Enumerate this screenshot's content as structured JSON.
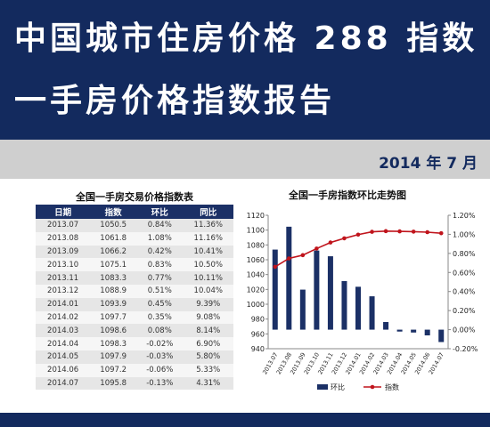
{
  "header": {
    "title_line1": "中国城市住房价格 288 指数",
    "title_line2": "一手房价格指数报告"
  },
  "date_label": "2014 年 7 月",
  "table": {
    "title": "全国一手房交易价格指数表",
    "columns": [
      "日期",
      "指数",
      "环比",
      "同比"
    ],
    "rows": [
      [
        "2013.07",
        "1050.5",
        "0.84%",
        "11.36%"
      ],
      [
        "2013.08",
        "1061.8",
        "1.08%",
        "11.16%"
      ],
      [
        "2013.09",
        "1066.2",
        "0.42%",
        "10.41%"
      ],
      [
        "2013.10",
        "1075.1",
        "0.83%",
        "10.50%"
      ],
      [
        "2013.11",
        "1083.3",
        "0.77%",
        "10.11%"
      ],
      [
        "2013.12",
        "1088.9",
        "0.51%",
        "10.04%"
      ],
      [
        "2014.01",
        "1093.9",
        "0.45%",
        "9.39%"
      ],
      [
        "2014.02",
        "1097.7",
        "0.35%",
        "9.08%"
      ],
      [
        "2014.03",
        "1098.6",
        "0.08%",
        "8.14%"
      ],
      [
        "2014.04",
        "1098.3",
        "-0.02%",
        "6.90%"
      ],
      [
        "2014.05",
        "1097.9",
        "-0.03%",
        "5.80%"
      ],
      [
        "2014.06",
        "1097.2",
        "-0.06%",
        "5.33%"
      ],
      [
        "2014.07",
        "1095.8",
        "-0.13%",
        "4.31%"
      ]
    ]
  },
  "chart_data": {
    "type": "bar",
    "title": "全国一手房指数环比走势图",
    "categories": [
      "2013.07",
      "2013.08",
      "2013.09",
      "2013.10",
      "2013.11",
      "2013.12",
      "2014.01",
      "2014.02",
      "2014.03",
      "2014.04",
      "2014.05",
      "2014.06",
      "2014.07"
    ],
    "series": [
      {
        "name": "环比",
        "type": "bar",
        "axis": "right",
        "color": "#1b3066",
        "values": [
          0.84,
          1.08,
          0.42,
          0.83,
          0.77,
          0.51,
          0.45,
          0.35,
          0.08,
          -0.02,
          -0.03,
          -0.06,
          -0.13
        ]
      },
      {
        "name": "指数",
        "type": "line",
        "axis": "left",
        "color": "#c0141c",
        "values": [
          1050.5,
          1061.8,
          1066.2,
          1075.1,
          1083.3,
          1088.9,
          1093.9,
          1097.7,
          1098.6,
          1098.3,
          1097.9,
          1097.2,
          1095.8
        ]
      }
    ],
    "y_left": {
      "min": 940,
      "max": 1120,
      "step": 20,
      "ticks": [
        "940",
        "960",
        "980",
        "1000",
        "1020",
        "1040",
        "1060",
        "1080",
        "1100",
        "1120"
      ]
    },
    "y_right": {
      "min": -0.2,
      "max": 1.2,
      "step": 0.2,
      "ticks": [
        "-0.20%",
        "0.00%",
        "0.20%",
        "0.40%",
        "0.60%",
        "0.80%",
        "1.00%",
        "1.20%"
      ]
    },
    "grid": false,
    "legend_position": "bottom"
  }
}
